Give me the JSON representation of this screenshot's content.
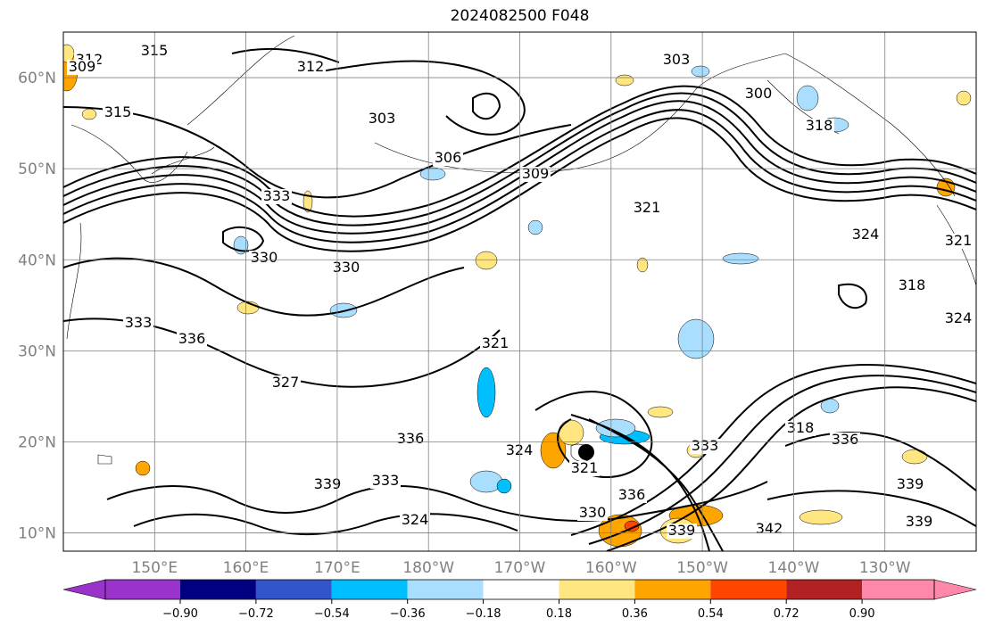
{
  "title": "2024082500 F048",
  "map": {
    "lat_labels": [
      {
        "lat": 60,
        "text": "60°N"
      },
      {
        "lat": 50,
        "text": "50°N"
      },
      {
        "lat": 40,
        "text": "40°N"
      },
      {
        "lat": 30,
        "text": "30°N"
      },
      {
        "lat": 20,
        "text": "20°N"
      },
      {
        "lat": 10,
        "text": "10°N"
      }
    ],
    "lon_labels": [
      {
        "lon": 150,
        "text": "150°E"
      },
      {
        "lon": 160,
        "text": "160°E"
      },
      {
        "lon": 170,
        "text": "170°E"
      },
      {
        "lon": 180,
        "text": "180°W"
      },
      {
        "lon": 190,
        "text": "170°W"
      },
      {
        "lon": 200,
        "text": "160°W"
      },
      {
        "lon": 210,
        "text": "150°W"
      },
      {
        "lon": 220,
        "text": "140°W"
      },
      {
        "lon": 230,
        "text": "130°W"
      }
    ],
    "lon_range": [
      140,
      240
    ],
    "lat_range": [
      8,
      65
    ],
    "contour_labels": [
      "315",
      "312",
      "309",
      "315",
      "312",
      "303",
      "306",
      "309",
      "303",
      "300",
      "318",
      "333",
      "330",
      "330",
      "333",
      "336",
      "327",
      "321",
      "324",
      "321",
      "324",
      "321",
      "318",
      "324",
      "321",
      "336",
      "339",
      "333",
      "324",
      "330",
      "336",
      "339",
      "342",
      "333",
      "318",
      "336",
      "339",
      "339"
    ],
    "colors": {
      "contour": "#000000",
      "grid": "#808080",
      "coast": "#000000"
    }
  },
  "colorbar": {
    "ticks": [
      "−0.90",
      "−0.72",
      "−0.54",
      "−0.36",
      "−0.18",
      "0.18",
      "0.36",
      "0.54",
      "0.72",
      "0.90"
    ],
    "colors": [
      "#9933cc",
      "#000080",
      "#3355cc",
      "#00bfff",
      "#aadeff",
      "#ffffff",
      "#ffe680",
      "#ffa500",
      "#ff4500",
      "#b22222",
      "#ff88aa"
    ]
  }
}
